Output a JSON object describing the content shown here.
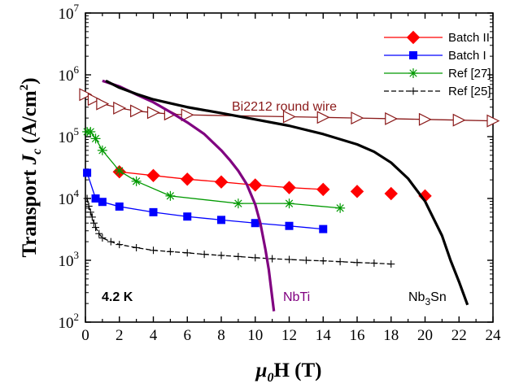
{
  "chart_data": {
    "type": "line",
    "xlabel": {
      "pre": "μ",
      "sub": "0",
      "post": "H (T)"
    },
    "ylabel": {
      "pre": "Transport ",
      "italic": "J",
      "sub": "c",
      "unit": " (A/cm",
      "sup": "2",
      "close": ")"
    },
    "xlim": [
      0,
      24
    ],
    "ylim": [
      100,
      10000000
    ],
    "y_scale": "log",
    "x_ticks": [
      0,
      2,
      4,
      6,
      8,
      10,
      12,
      14,
      16,
      18,
      20,
      22,
      24
    ],
    "y_ticks": [
      {
        "base": "10",
        "exp": "2",
        "value": 100
      },
      {
        "base": "10",
        "exp": "3",
        "value": 1000
      },
      {
        "base": "10",
        "exp": "4",
        "value": 10000
      },
      {
        "base": "10",
        "exp": "5",
        "value": 100000
      },
      {
        "base": "10",
        "exp": "6",
        "value": 1000000
      },
      {
        "base": "10",
        "exp": "7",
        "value": 10000000
      }
    ],
    "legend_position": "top-right",
    "series": [
      {
        "name": "Batch II",
        "color": "#ff0000",
        "marker": "diamond",
        "line": "solid",
        "in_legend": true,
        "x": [
          2,
          4,
          6,
          8,
          10,
          12,
          14
        ],
        "y": [
          27000,
          23500,
          20500,
          18500,
          16500,
          15000,
          14000
        ]
      },
      {
        "name": "Batch II",
        "color": "#ff0000",
        "marker": "diamond",
        "line": "none",
        "in_legend": false,
        "x": [
          16,
          18,
          20
        ],
        "y": [
          13000,
          12000,
          11000
        ]
      },
      {
        "name": "Batch I",
        "color": "#0000ff",
        "marker": "square",
        "line": "solid",
        "in_legend": true,
        "x": [
          0.1,
          0.6,
          1.0,
          2,
          4,
          6,
          8,
          10,
          12,
          14
        ],
        "y": [
          26000,
          10000,
          8800,
          7400,
          6000,
          5100,
          4500,
          4000,
          3600,
          3200
        ]
      },
      {
        "name": "Ref [27]",
        "color": "#009900",
        "marker": "asterisk",
        "line": "solid",
        "in_legend": true,
        "x": [
          0.1,
          0.3,
          0.6,
          1,
          2,
          3,
          5,
          9,
          12,
          15
        ],
        "y": [
          120000,
          120000,
          93000,
          60000,
          28000,
          19000,
          11000,
          8300,
          8300,
          7000
        ]
      },
      {
        "name": "Ref [25]",
        "color": "#000000",
        "marker": "plus",
        "line": "dashed",
        "in_legend": true,
        "x": [
          0.1,
          0.2,
          0.3,
          0.4,
          0.5,
          0.6,
          0.8,
          1,
          1.5,
          2,
          3,
          4,
          5,
          6,
          7,
          8,
          9,
          10,
          11,
          12,
          13,
          14,
          15,
          16,
          17,
          18
        ],
        "y": [
          10000,
          7500,
          6000,
          5000,
          4000,
          3400,
          2700,
          2300,
          2000,
          1800,
          1600,
          1450,
          1380,
          1320,
          1250,
          1200,
          1150,
          1100,
          1060,
          1030,
          1000,
          980,
          950,
          920,
          900,
          870
        ]
      },
      {
        "name": "Bi2212 round wire",
        "color": "#8b1a1a",
        "marker": "triangle-right",
        "line": "solid",
        "in_legend": false,
        "x": [
          0,
          0.5,
          1,
          2,
          3,
          4,
          5,
          6,
          12,
          14,
          16,
          18,
          20,
          22,
          24
        ],
        "y": [
          480000,
          400000,
          340000,
          290000,
          260000,
          245000,
          232000,
          225000,
          210000,
          205000,
          200000,
          195000,
          190000,
          185000,
          180000
        ]
      },
      {
        "name": "NbTi",
        "color": "#800080",
        "marker": "none",
        "line": "solid",
        "in_legend": false,
        "x": [
          1,
          2,
          3,
          4,
          5,
          6,
          7,
          8,
          8.5,
          9,
          9.5,
          10,
          10.3,
          10.6,
          10.8,
          11,
          11.1
        ],
        "y": [
          800000,
          650000,
          480000,
          360000,
          250000,
          170000,
          110000,
          60000,
          42000,
          28000,
          17000,
          8000,
          4000,
          1500,
          700,
          250,
          150
        ]
      },
      {
        "name": "Nb3Sn",
        "color": "#000000",
        "marker": "none",
        "line": "solid",
        "in_legend": false,
        "x": [
          1.2,
          2,
          3,
          4,
          6,
          8,
          10,
          12,
          14,
          16,
          17,
          18,
          19,
          20,
          21,
          21.5,
          22,
          22.5
        ],
        "y": [
          800000,
          620000,
          490000,
          400000,
          300000,
          240000,
          190000,
          150000,
          110000,
          75000,
          57000,
          38000,
          21000,
          9000,
          2500,
          1000,
          450,
          190
        ]
      }
    ],
    "annotations": {
      "bi2212": "Bi2212 round wire",
      "nbti": "NbTi",
      "nb3sn": {
        "pre": "Nb",
        "sub": "3",
        "post": "Sn"
      },
      "temperature": "4.2 K"
    },
    "colors": {
      "bi2212": "#8b1a1a",
      "nbti": "#800080",
      "nb3sn": "#000000",
      "temperature": "#000000"
    }
  }
}
